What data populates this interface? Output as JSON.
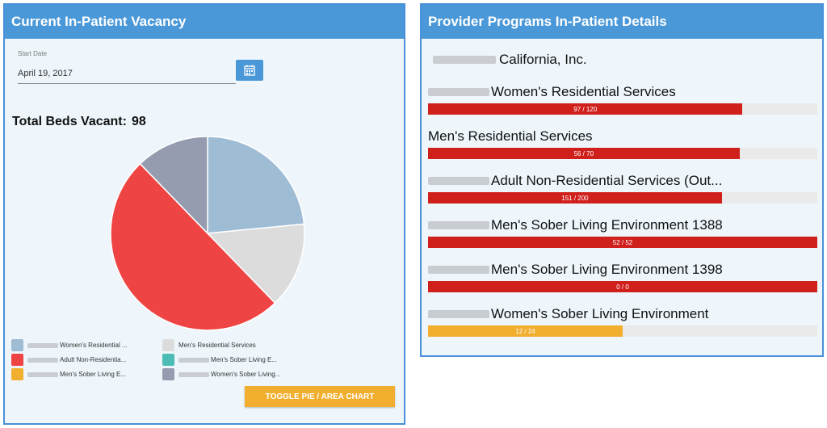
{
  "left_panel": {
    "title": "Current In-Patient Vacancy",
    "start_date_label": "Start Date",
    "start_date_value": "April 19, 2017",
    "total_label": "Total Beds Vacant:",
    "total_value": "98",
    "toggle_button": "TOGGLE PIE / AREA CHART"
  },
  "legend": [
    {
      "label": "Women's Residential ...",
      "color": "#9fbcd5",
      "redacted": true
    },
    {
      "label": "Men's Residential Services",
      "color": "#dcdcdc",
      "redacted": false
    },
    {
      "label": "Adult Non-Residentia...",
      "color": "#ef4444",
      "redacted": true
    },
    {
      "label": "Men's Sober Living E...",
      "color": "#4cbdb5",
      "redacted": true
    },
    {
      "label": "Men's Sober Living E...",
      "color": "#f2ae2e",
      "redacted": true
    },
    {
      "label": "Women's Sober Living...",
      "color": "#959cb0",
      "redacted": true
    }
  ],
  "chart_data": {
    "type": "pie",
    "slices": [
      {
        "label": "Women's Residential Services",
        "value": 23,
        "color": "#9fbcd5"
      },
      {
        "label": "Men's Residential Services",
        "value": 14,
        "color": "#dcdcdc"
      },
      {
        "label": "Adult Non-Residential Services",
        "value": 49,
        "color": "#ef4444"
      },
      {
        "label": "Men's Sober Living Environment 1388",
        "value": 0,
        "color": "#4cbdb5"
      },
      {
        "label": "Men's Sober Living Environment 1398",
        "value": 0,
        "color": "#f2ae2e"
      },
      {
        "label": "Women's Sober Living Environment",
        "value": 12,
        "color": "#959cb0"
      }
    ]
  },
  "right_panel": {
    "title": "Provider Programs In-Patient Details",
    "organization": "California, Inc.",
    "programs": [
      {
        "name": "Women's Residential Services",
        "redacted": true,
        "filled": 97,
        "total": 120,
        "bar_label": "97 / 120",
        "fraction": 0.808,
        "color": "#d0201c"
      },
      {
        "name": "Men's Residential Services",
        "redacted": false,
        "filled": 56,
        "total": 70,
        "bar_label": "56 / 70",
        "fraction": 0.8,
        "color": "#d0201c"
      },
      {
        "name": "Adult Non-Residential Services (Out...",
        "redacted": true,
        "filled": 151,
        "total": 200,
        "bar_label": "151 / 200",
        "fraction": 0.755,
        "color": "#d0201c"
      },
      {
        "name": "Men's Sober Living Environment 1388",
        "redacted": true,
        "filled": 52,
        "total": 52,
        "bar_label": "52 / 52",
        "fraction": 1.0,
        "color": "#d0201c"
      },
      {
        "name": "Men's Sober Living Environment 1398",
        "redacted": true,
        "filled": 0,
        "total": 0,
        "bar_label": "0 / 0",
        "fraction": 1.0,
        "color": "#d0201c"
      },
      {
        "name": "Women's Sober Living Environment",
        "redacted": true,
        "filled": 12,
        "total": 24,
        "bar_label": "12 / 24",
        "fraction": 0.5,
        "color": "#f2ae2e"
      }
    ]
  }
}
